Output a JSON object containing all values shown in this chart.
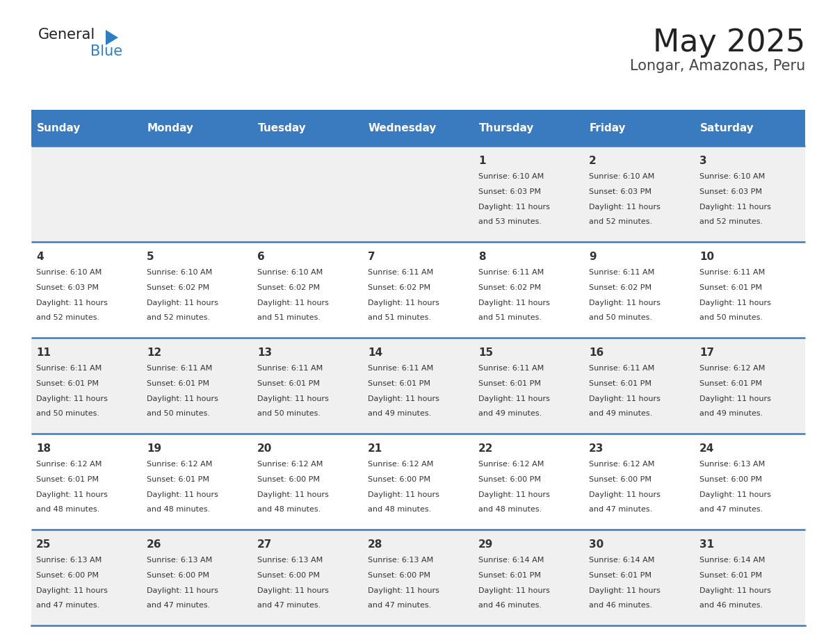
{
  "title": "May 2025",
  "subtitle": "Longar, Amazonas, Peru",
  "header_color": "#3a7abf",
  "header_text_color": "#ffffff",
  "days_of_week": [
    "Sunday",
    "Monday",
    "Tuesday",
    "Wednesday",
    "Thursday",
    "Friday",
    "Saturday"
  ],
  "bg_color_even": "#f0f0f0",
  "bg_color_odd": "#ffffff",
  "row_line_color": "#3a7abf",
  "calendar_data": [
    [
      {
        "day": null,
        "sunrise": null,
        "sunset": null,
        "daylight": null
      },
      {
        "day": null,
        "sunrise": null,
        "sunset": null,
        "daylight": null
      },
      {
        "day": null,
        "sunrise": null,
        "sunset": null,
        "daylight": null
      },
      {
        "day": null,
        "sunrise": null,
        "sunset": null,
        "daylight": null
      },
      {
        "day": 1,
        "sunrise": "6:10 AM",
        "sunset": "6:03 PM",
        "daylight": "11 hours and 53 minutes."
      },
      {
        "day": 2,
        "sunrise": "6:10 AM",
        "sunset": "6:03 PM",
        "daylight": "11 hours and 52 minutes."
      },
      {
        "day": 3,
        "sunrise": "6:10 AM",
        "sunset": "6:03 PM",
        "daylight": "11 hours and 52 minutes."
      }
    ],
    [
      {
        "day": 4,
        "sunrise": "6:10 AM",
        "sunset": "6:03 PM",
        "daylight": "11 hours and 52 minutes."
      },
      {
        "day": 5,
        "sunrise": "6:10 AM",
        "sunset": "6:02 PM",
        "daylight": "11 hours and 52 minutes."
      },
      {
        "day": 6,
        "sunrise": "6:10 AM",
        "sunset": "6:02 PM",
        "daylight": "11 hours and 51 minutes."
      },
      {
        "day": 7,
        "sunrise": "6:11 AM",
        "sunset": "6:02 PM",
        "daylight": "11 hours and 51 minutes."
      },
      {
        "day": 8,
        "sunrise": "6:11 AM",
        "sunset": "6:02 PM",
        "daylight": "11 hours and 51 minutes."
      },
      {
        "day": 9,
        "sunrise": "6:11 AM",
        "sunset": "6:02 PM",
        "daylight": "11 hours and 50 minutes."
      },
      {
        "day": 10,
        "sunrise": "6:11 AM",
        "sunset": "6:01 PM",
        "daylight": "11 hours and 50 minutes."
      }
    ],
    [
      {
        "day": 11,
        "sunrise": "6:11 AM",
        "sunset": "6:01 PM",
        "daylight": "11 hours and 50 minutes."
      },
      {
        "day": 12,
        "sunrise": "6:11 AM",
        "sunset": "6:01 PM",
        "daylight": "11 hours and 50 minutes."
      },
      {
        "day": 13,
        "sunrise": "6:11 AM",
        "sunset": "6:01 PM",
        "daylight": "11 hours and 50 minutes."
      },
      {
        "day": 14,
        "sunrise": "6:11 AM",
        "sunset": "6:01 PM",
        "daylight": "11 hours and 49 minutes."
      },
      {
        "day": 15,
        "sunrise": "6:11 AM",
        "sunset": "6:01 PM",
        "daylight": "11 hours and 49 minutes."
      },
      {
        "day": 16,
        "sunrise": "6:11 AM",
        "sunset": "6:01 PM",
        "daylight": "11 hours and 49 minutes."
      },
      {
        "day": 17,
        "sunrise": "6:12 AM",
        "sunset": "6:01 PM",
        "daylight": "11 hours and 49 minutes."
      }
    ],
    [
      {
        "day": 18,
        "sunrise": "6:12 AM",
        "sunset": "6:01 PM",
        "daylight": "11 hours and 48 minutes."
      },
      {
        "day": 19,
        "sunrise": "6:12 AM",
        "sunset": "6:01 PM",
        "daylight": "11 hours and 48 minutes."
      },
      {
        "day": 20,
        "sunrise": "6:12 AM",
        "sunset": "6:00 PM",
        "daylight": "11 hours and 48 minutes."
      },
      {
        "day": 21,
        "sunrise": "6:12 AM",
        "sunset": "6:00 PM",
        "daylight": "11 hours and 48 minutes."
      },
      {
        "day": 22,
        "sunrise": "6:12 AM",
        "sunset": "6:00 PM",
        "daylight": "11 hours and 48 minutes."
      },
      {
        "day": 23,
        "sunrise": "6:12 AM",
        "sunset": "6:00 PM",
        "daylight": "11 hours and 47 minutes."
      },
      {
        "day": 24,
        "sunrise": "6:13 AM",
        "sunset": "6:00 PM",
        "daylight": "11 hours and 47 minutes."
      }
    ],
    [
      {
        "day": 25,
        "sunrise": "6:13 AM",
        "sunset": "6:00 PM",
        "daylight": "11 hours and 47 minutes."
      },
      {
        "day": 26,
        "sunrise": "6:13 AM",
        "sunset": "6:00 PM",
        "daylight": "11 hours and 47 minutes."
      },
      {
        "day": 27,
        "sunrise": "6:13 AM",
        "sunset": "6:00 PM",
        "daylight": "11 hours and 47 minutes."
      },
      {
        "day": 28,
        "sunrise": "6:13 AM",
        "sunset": "6:00 PM",
        "daylight": "11 hours and 47 minutes."
      },
      {
        "day": 29,
        "sunrise": "6:14 AM",
        "sunset": "6:01 PM",
        "daylight": "11 hours and 46 minutes."
      },
      {
        "day": 30,
        "sunrise": "6:14 AM",
        "sunset": "6:01 PM",
        "daylight": "11 hours and 46 minutes."
      },
      {
        "day": 31,
        "sunrise": "6:14 AM",
        "sunset": "6:01 PM",
        "daylight": "11 hours and 46 minutes."
      }
    ]
  ],
  "logo_general_color": "#222222",
  "logo_blue_color": "#2e7fc1",
  "title_color": "#222222",
  "subtitle_color": "#444444",
  "title_fontsize": 32,
  "subtitle_fontsize": 15,
  "header_fontsize": 11,
  "day_number_fontsize": 11,
  "cell_text_fontsize": 8
}
